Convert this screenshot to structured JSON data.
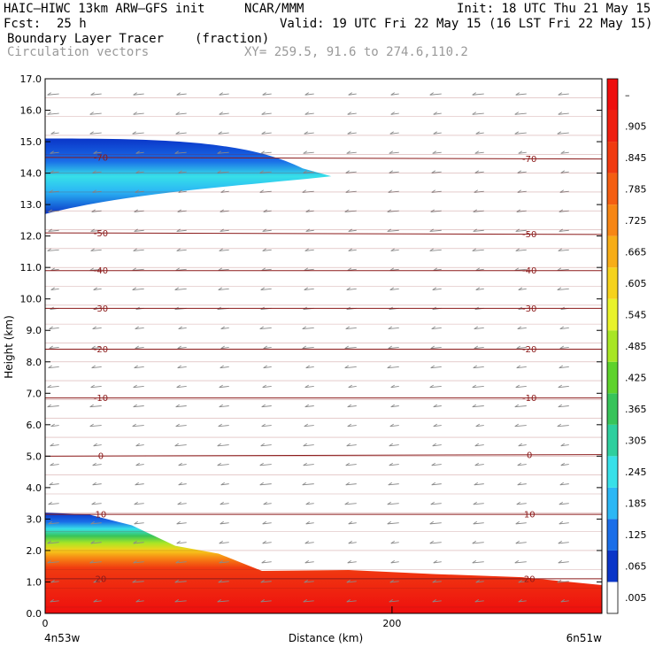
{
  "header": {
    "title": "HAIC–HIWC 13km ARW–GFS init",
    "org": "NCAR/MMM",
    "init": "Init: 18 UTC Thu 21 May 15",
    "fcst_label": "Fcst:",
    "fcst_value": "25 h",
    "valid": "Valid: 19 UTC Fri 22 May 15 (16 LST Fri 22 May 15)",
    "field_name": "Boundary Layer Tracer",
    "field_unit": "(fraction)",
    "vector_label": "Circulation vectors",
    "xy_label": "XY= 259.5, 91.6 to 274.6,110.2"
  },
  "axes": {
    "ylabel": "Height (km)",
    "xlabel": "Distance (km)",
    "y_ticks": [
      "0.0",
      "1.0",
      "2.0",
      "3.0",
      "4.0",
      "5.0",
      "6.0",
      "7.0",
      "8.0",
      "9.0",
      "10.0",
      "11.0",
      "12.0",
      "13.0",
      "14.0",
      "15.0",
      "16.0",
      "17.0"
    ],
    "x_tick_label": "200",
    "x_left_end": "0",
    "loc_left": "4n53w",
    "loc_right": "6n51w"
  },
  "chart_data": {
    "type": "heatmap",
    "title": "Boundary Layer Tracer",
    "xlabel": "Distance (km)",
    "ylabel": "Height (km)",
    "xlim": [
      0,
      321
    ],
    "ylim": [
      0,
      17
    ],
    "colorbar": {
      "levels": [
        ".005",
        ".065",
        ".125",
        ".185",
        ".245",
        ".305",
        ".365",
        ".425",
        ".485",
        ".545",
        ".605",
        ".665",
        ".725",
        ".785",
        ".845",
        ".905",
        "–"
      ],
      "colors": [
        "#ffffff",
        "#0a35c8",
        "#1a6ee8",
        "#2bb7f5",
        "#37e0e8",
        "#2ecf9e",
        "#37c45a",
        "#5ed22c",
        "#a8e625",
        "#e8f22a",
        "#f5d21c",
        "#f7ad17",
        "#f78614",
        "#f45e12",
        "#f03a10",
        "#ee1f10",
        "#ee0e0e"
      ]
    },
    "boundary_layer_top_km": [
      {
        "x": 0,
        "y": 3.2
      },
      {
        "x": 25,
        "y": 3.15
      },
      {
        "x": 50,
        "y": 2.8
      },
      {
        "x": 75,
        "y": 2.15
      },
      {
        "x": 100,
        "y": 1.9
      },
      {
        "x": 125,
        "y": 1.35
      },
      {
        "x": 175,
        "y": 1.38
      },
      {
        "x": 225,
        "y": 1.25
      },
      {
        "x": 275,
        "y": 1.15
      },
      {
        "x": 321,
        "y": 0.9
      }
    ],
    "upper_plume_km": {
      "x_start": 0,
      "x_end": 165,
      "y_bottom": 12.7,
      "y_top": 15.1
    },
    "temperature_contours_C": [
      {
        "label": "-70",
        "left_km": 14.5,
        "right_km": 14.45
      },
      {
        "label": "-50",
        "left_km": 12.1,
        "right_km": 12.05
      },
      {
        "label": "-40",
        "left_km": 10.9,
        "right_km": 10.9
      },
      {
        "label": "-30",
        "left_km": 9.7,
        "right_km": 9.7
      },
      {
        "label": "-20",
        "left_km": 8.4,
        "right_km": 8.4
      },
      {
        "label": "-10",
        "left_km": 6.85,
        "right_km": 6.85
      },
      {
        "label": "0",
        "left_km": 5.0,
        "right_km": 5.05
      },
      {
        "label": "10",
        "left_km": 3.15,
        "right_km": 3.15
      },
      {
        "label": "20",
        "left_km": 1.1,
        "right_km": 1.1
      }
    ]
  }
}
